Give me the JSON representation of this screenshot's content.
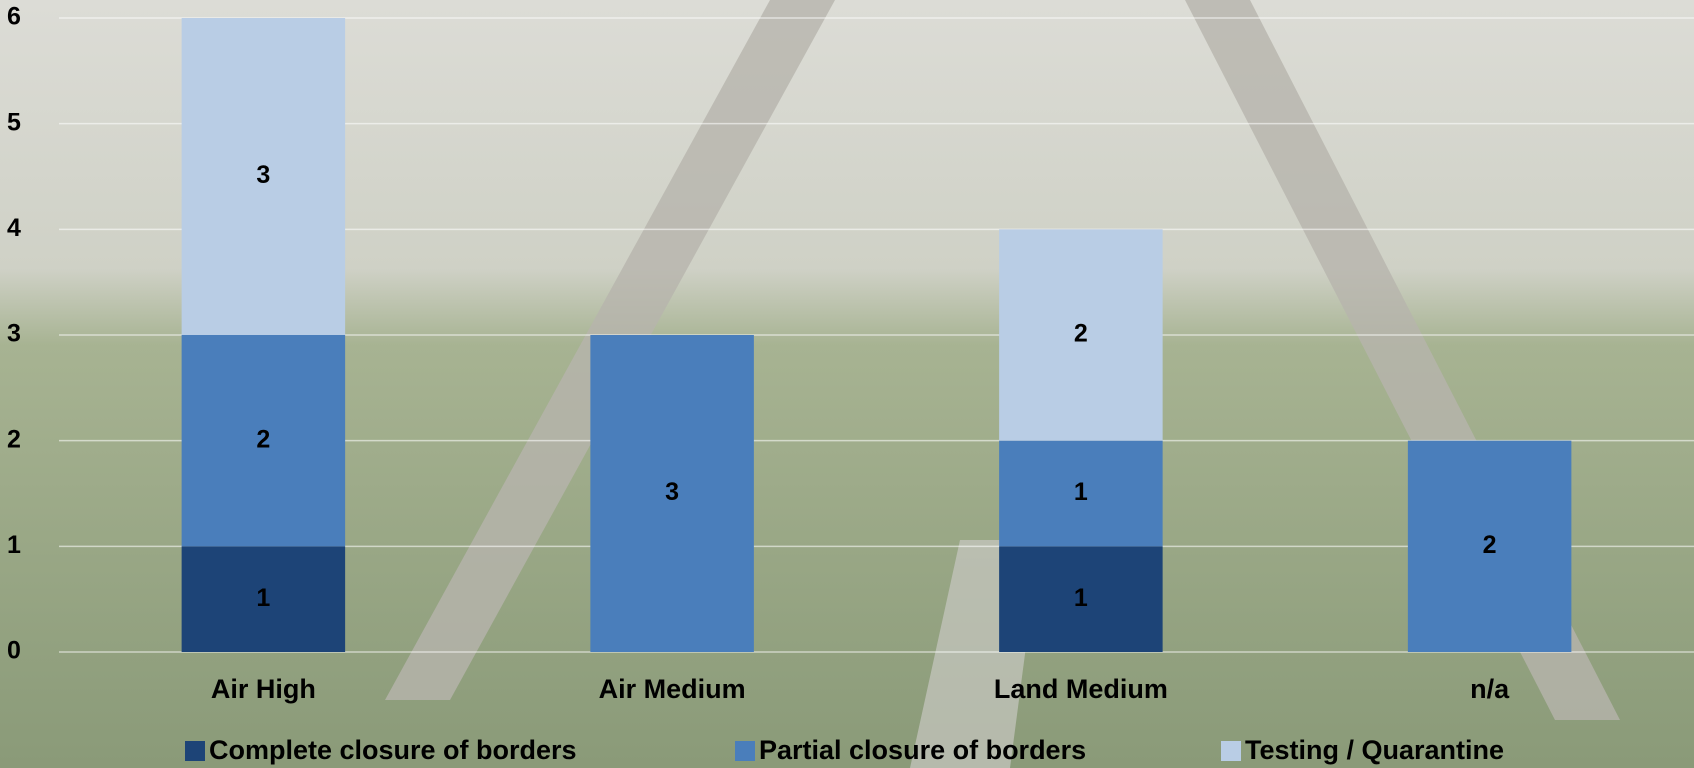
{
  "chart_data": {
    "type": "stacked_bar",
    "categories": [
      "Air High",
      "Air Medium",
      "Land Medium",
      "n/a"
    ],
    "series": [
      {
        "name": "Complete closure of borders",
        "color": "#1d4477",
        "values": [
          1,
          null,
          1,
          null
        ]
      },
      {
        "name": "Partial closure of borders",
        "color": "#4a7ebb",
        "values": [
          2,
          3,
          1,
          2
        ]
      },
      {
        "name": "Testing / Quarantine",
        "color": "#b9cde5",
        "values": [
          3,
          null,
          2,
          null
        ]
      }
    ],
    "ylim": [
      0,
      6
    ],
    "yticks": [
      0,
      1,
      2,
      3,
      4,
      5,
      6
    ],
    "grid": true,
    "legend": "bottom"
  }
}
